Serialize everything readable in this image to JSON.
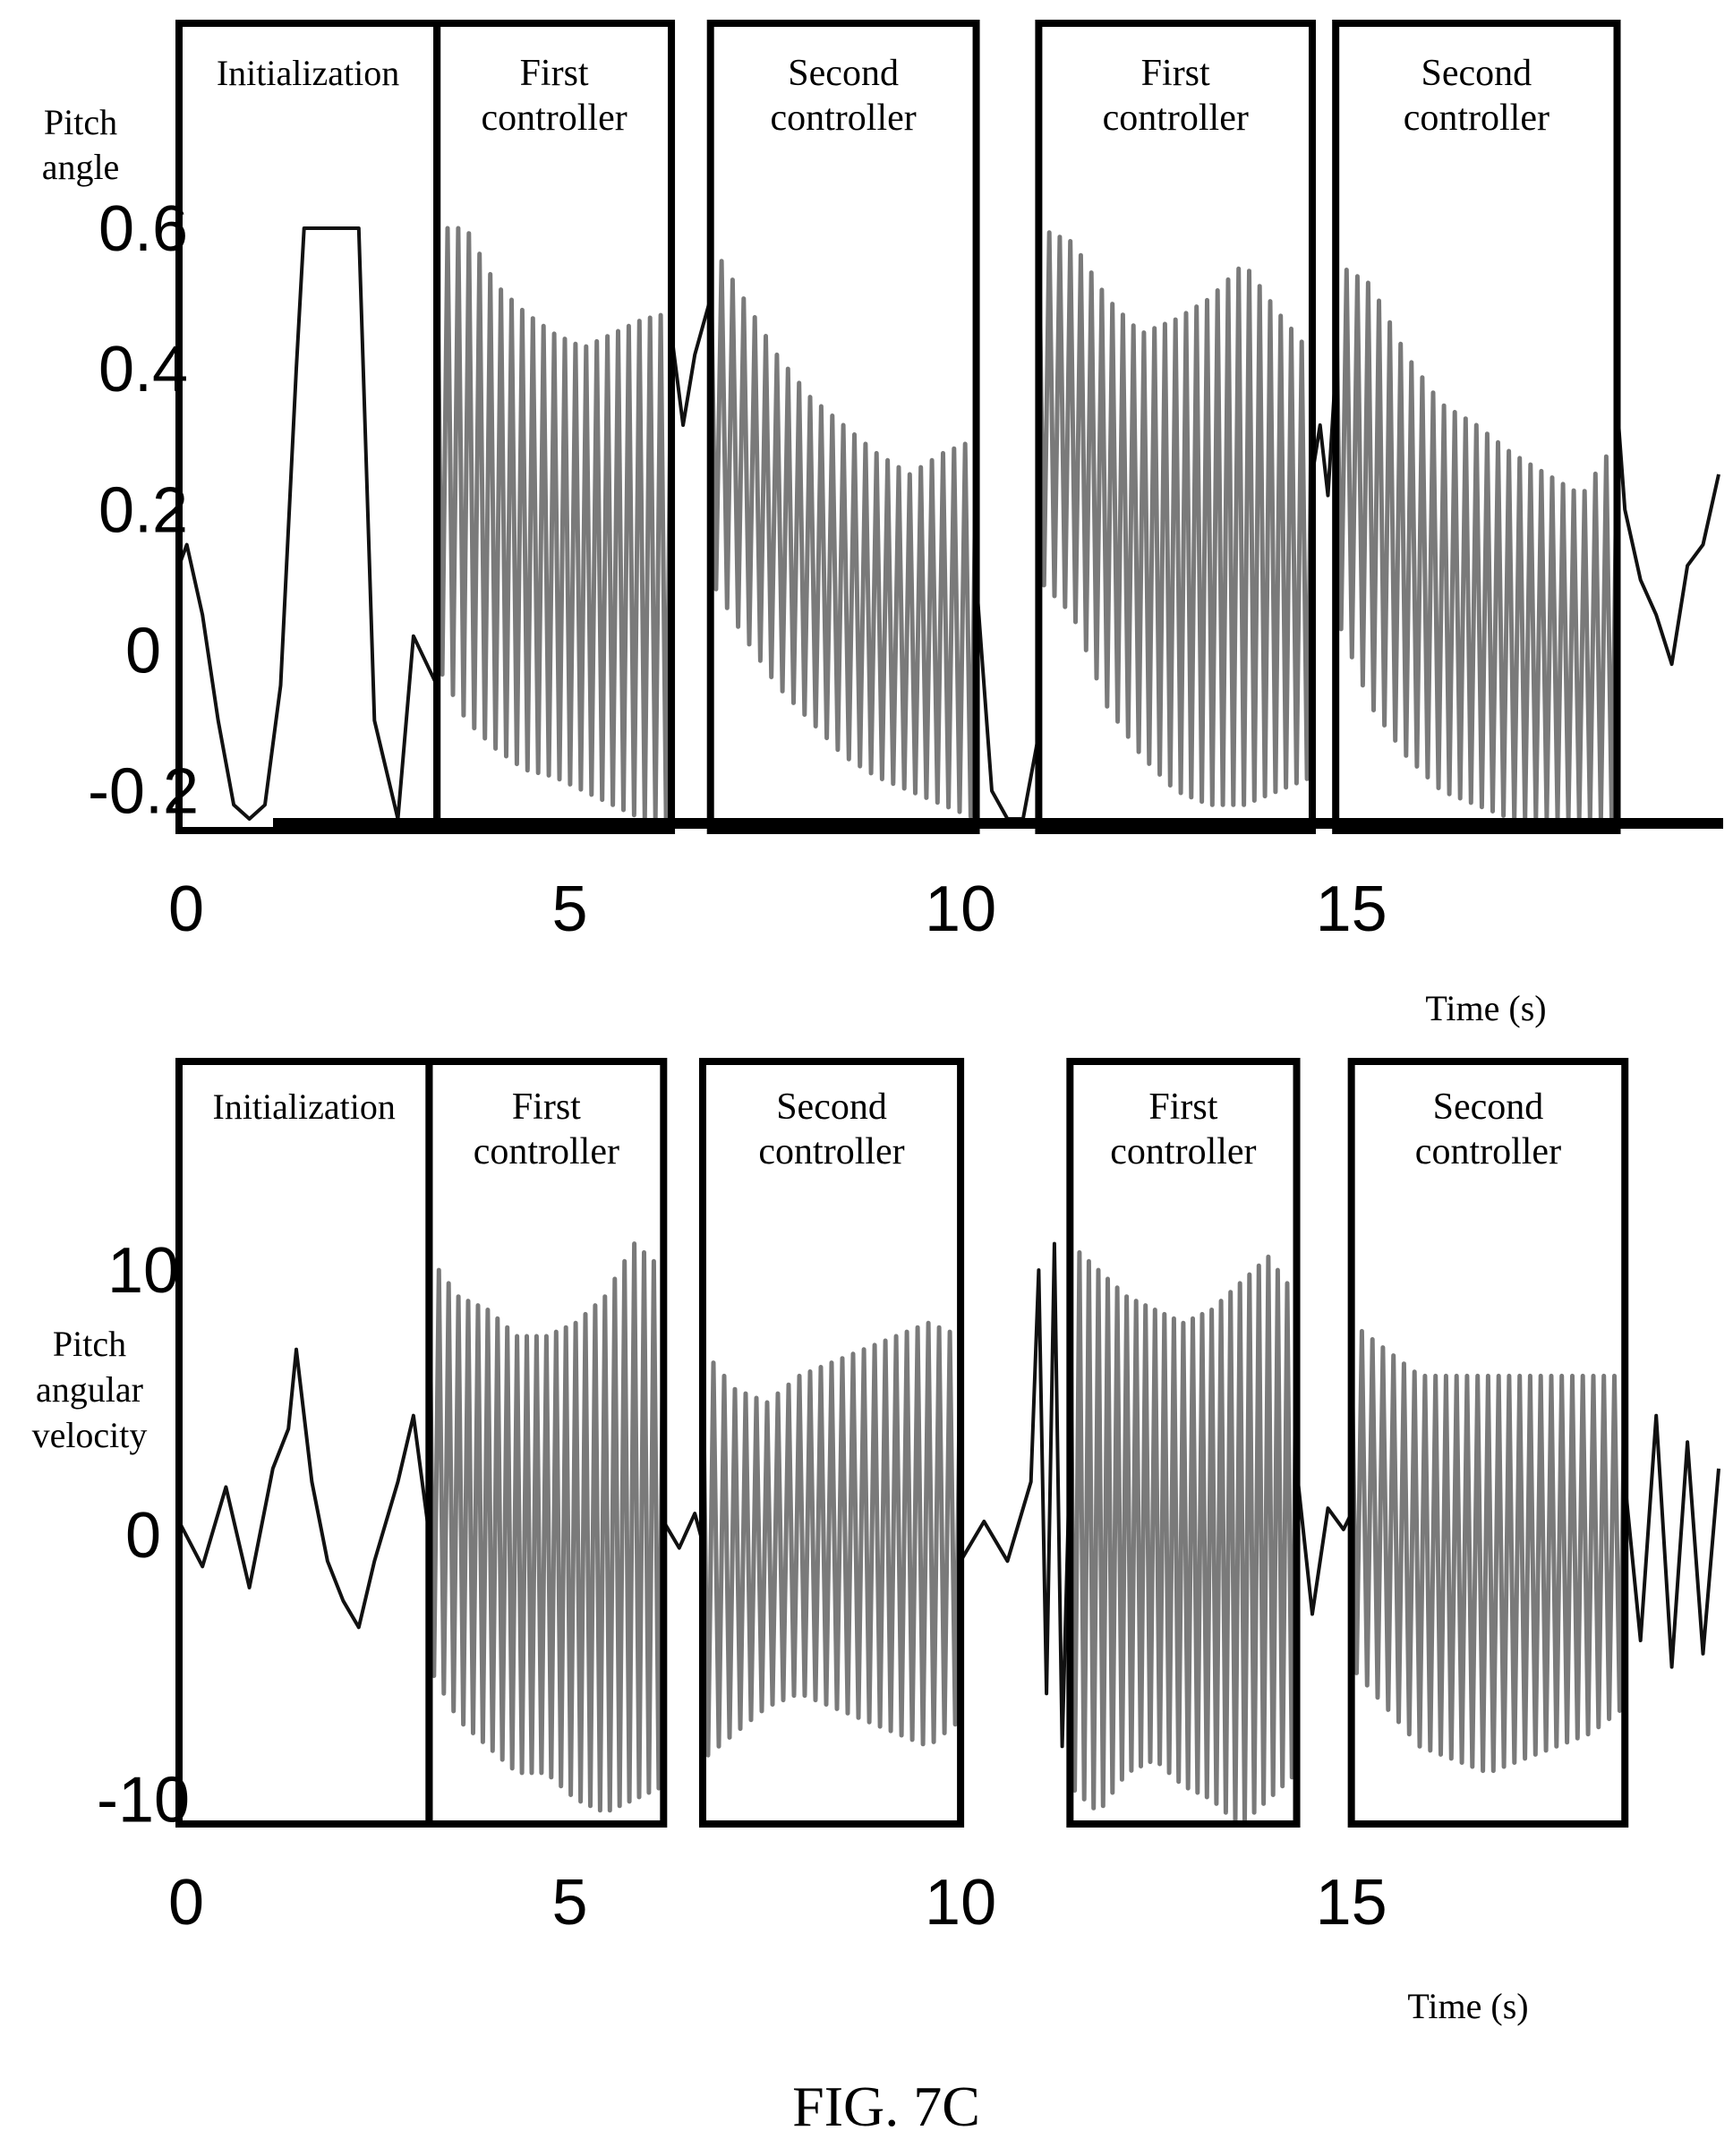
{
  "figure_label": "FIG. 7C",
  "colors": {
    "signal_dark": "#111111",
    "signal_gray": "#7a7a7a",
    "box": "#000000"
  },
  "chart_data": [
    {
      "type": "line",
      "ylabel": "Pitch angle",
      "xlabel": "Time (s)",
      "xlim": [
        0,
        19.7
      ],
      "ylim": [
        -0.24,
        0.6
      ],
      "xticks": [
        "0",
        "5",
        "10",
        "15"
      ],
      "yticks": [
        "0.6",
        "0.4",
        "0.2",
        "0",
        "-0.2"
      ],
      "grid": false,
      "regions": [
        {
          "label": "Initialization",
          "x_start": 0.0,
          "x_end": 3.3
        },
        {
          "label": "First controller",
          "x_start": 3.3,
          "x_end": 6.3
        },
        {
          "label": "Second controller",
          "x_start": 6.8,
          "x_end": 10.2
        },
        {
          "label": "First controller",
          "x_start": 11.0,
          "x_end": 14.5
        },
        {
          "label": "Second controller",
          "x_start": 14.8,
          "x_end": 18.4
        }
      ],
      "series": [
        {
          "color": "dark",
          "x": [
            0,
            0.1,
            0.3,
            0.5,
            0.7,
            0.9,
            1.1,
            1.3,
            1.5,
            1.6,
            2.3,
            2.5,
            2.8,
            3.0,
            3.3
          ],
          "y": [
            0.12,
            0.15,
            0.05,
            -0.1,
            -0.22,
            -0.24,
            -0.22,
            -0.05,
            0.4,
            0.6,
            0.6,
            -0.1,
            -0.24,
            0.02,
            -0.05
          ]
        },
        {
          "color": "gray",
          "x_start": 3.3,
          "x_end": 6.3,
          "cycles": 22,
          "upper": [
            0.6,
            0.6,
            0.52,
            0.48,
            0.45,
            0.43,
            0.45,
            0.47,
            0.48
          ],
          "lower": [
            -0.02,
            -0.1,
            -0.14,
            -0.17,
            -0.18,
            -0.2,
            -0.22,
            -0.24,
            -0.24
          ]
        },
        {
          "color": "dark",
          "x": [
            6.3,
            6.45,
            6.6,
            6.8
          ],
          "y": [
            0.45,
            0.32,
            0.42,
            0.5
          ]
        },
        {
          "color": "gray",
          "x_start": 6.8,
          "x_end": 10.2,
          "cycles": 24,
          "upper": [
            0.58,
            0.5,
            0.42,
            0.36,
            0.32,
            0.28,
            0.25,
            0.28,
            0.3
          ],
          "lower": [
            0.1,
            0.02,
            -0.05,
            -0.1,
            -0.15,
            -0.18,
            -0.2,
            -0.22,
            -0.24
          ]
        },
        {
          "color": "dark",
          "x": [
            10.2,
            10.4,
            10.6,
            10.8,
            11.0
          ],
          "y": [
            0.1,
            -0.2,
            -0.24,
            -0.24,
            -0.12
          ]
        },
        {
          "color": "gray",
          "x_start": 11.0,
          "x_end": 14.5,
          "cycles": 26,
          "upper": [
            0.6,
            0.58,
            0.5,
            0.45,
            0.47,
            0.5,
            0.55,
            0.48,
            0.42
          ],
          "lower": [
            0.1,
            0.05,
            -0.08,
            -0.15,
            -0.2,
            -0.22,
            -0.22,
            -0.2,
            -0.18
          ]
        },
        {
          "color": "dark",
          "x": [
            14.5,
            14.6,
            14.7,
            14.8
          ],
          "y": [
            0.25,
            0.32,
            0.22,
            0.4
          ]
        },
        {
          "color": "gray",
          "x_start": 14.8,
          "x_end": 18.4,
          "cycles": 26,
          "upper": [
            0.55,
            0.52,
            0.42,
            0.35,
            0.32,
            0.28,
            0.25,
            0.22,
            0.3
          ],
          "lower": [
            0.05,
            -0.08,
            -0.15,
            -0.2,
            -0.22,
            -0.24,
            -0.24,
            -0.24,
            -0.24
          ]
        },
        {
          "color": "dark",
          "x": [
            18.4,
            18.5,
            18.7,
            18.9,
            19.1,
            19.3,
            19.5,
            19.7
          ],
          "y": [
            0.35,
            0.2,
            0.1,
            0.05,
            -0.02,
            0.12,
            0.15,
            0.25
          ]
        }
      ]
    },
    {
      "type": "line",
      "ylabel": "Pitch angular velocity",
      "xlabel": "Time (s)",
      "xlim": [
        0,
        19.7
      ],
      "ylim": [
        -11,
        12
      ],
      "xticks": [
        "0",
        "5",
        "10",
        "15"
      ],
      "yticks": [
        "10",
        "0",
        "-10"
      ],
      "grid": false,
      "regions": [
        {
          "label": "Initialization",
          "x_start": 0.0,
          "x_end": 3.2
        },
        {
          "label": "First controller",
          "x_start": 3.2,
          "x_end": 6.2
        },
        {
          "label": "Second controller",
          "x_start": 6.7,
          "x_end": 10.0
        },
        {
          "label": "First controller",
          "x_start": 11.4,
          "x_end": 14.3
        },
        {
          "label": "Second controller",
          "x_start": 15.0,
          "x_end": 18.5
        }
      ],
      "series": [
        {
          "color": "dark",
          "x": [
            0,
            0.3,
            0.6,
            0.9,
            1.2,
            1.4,
            1.5,
            1.7,
            1.9,
            2.1,
            2.3,
            2.5,
            2.8,
            3.0,
            3.2
          ],
          "y": [
            0.5,
            -1.2,
            1.8,
            -2.0,
            2.5,
            4.0,
            7.0,
            2.0,
            -1.0,
            -2.5,
            -3.5,
            -1.0,
            2.0,
            4.5,
            0.0
          ]
        },
        {
          "color": "gray",
          "x_start": 3.2,
          "x_end": 6.2,
          "cycles": 24,
          "upper": [
            10.5,
            9.0,
            8.5,
            7.5,
            7.5,
            8.0,
            9.0,
            11.0,
            10.0
          ],
          "lower": [
            -5.0,
            -7.0,
            -8.0,
            -9.0,
            -9.0,
            -10.0,
            -10.5,
            -10.0,
            -9.5
          ]
        },
        {
          "color": "dark",
          "x": [
            6.2,
            6.4,
            6.6,
            6.7
          ],
          "y": [
            0.5,
            -0.5,
            0.8,
            -0.3
          ]
        },
        {
          "color": "gray",
          "x_start": 6.7,
          "x_end": 10.0,
          "cycles": 24,
          "upper": [
            7.0,
            5.5,
            5.0,
            6.0,
            6.5,
            7.0,
            7.5,
            8.0,
            7.5
          ],
          "lower": [
            -8.5,
            -7.5,
            -6.5,
            -6.0,
            -6.5,
            -7.0,
            -7.5,
            -8.0,
            -7.0
          ]
        },
        {
          "color": "dark",
          "x": [
            10.0,
            10.3,
            10.6,
            10.9,
            11.0,
            11.1,
            11.2,
            11.3,
            11.4
          ],
          "y": [
            -1.0,
            0.5,
            -1.0,
            2.0,
            10.0,
            -6.0,
            11.0,
            -8.0,
            3.0
          ]
        },
        {
          "color": "gray",
          "x_start": 11.4,
          "x_end": 14.3,
          "cycles": 24,
          "upper": [
            11.0,
            10.0,
            9.0,
            8.5,
            8.0,
            8.5,
            9.5,
            10.5,
            9.0
          ],
          "lower": [
            -9.5,
            -10.5,
            -9.0,
            -8.5,
            -9.5,
            -10.0,
            -11.0,
            -10.0,
            -9.0
          ]
        },
        {
          "color": "dark",
          "x": [
            14.3,
            14.5,
            14.7,
            14.9,
            15.0
          ],
          "y": [
            2.5,
            -3.0,
            1.0,
            0.2,
            0.8
          ]
        },
        {
          "color": "gray",
          "x_start": 15.0,
          "x_end": 18.5,
          "cycles": 26,
          "upper": [
            8.0,
            7.0,
            6.0,
            6.0,
            6.0,
            6.0,
            6.0,
            6.0,
            6.0
          ],
          "lower": [
            -5.0,
            -6.5,
            -8.0,
            -8.5,
            -9.0,
            -8.5,
            -8.0,
            -7.5,
            -6.5
          ]
        },
        {
          "color": "dark",
          "x": [
            18.5,
            18.7,
            18.9,
            19.1,
            19.3,
            19.5,
            19.7
          ],
          "y": [
            2.0,
            -4.0,
            4.5,
            -5.0,
            3.5,
            -4.5,
            2.5
          ]
        }
      ]
    }
  ]
}
